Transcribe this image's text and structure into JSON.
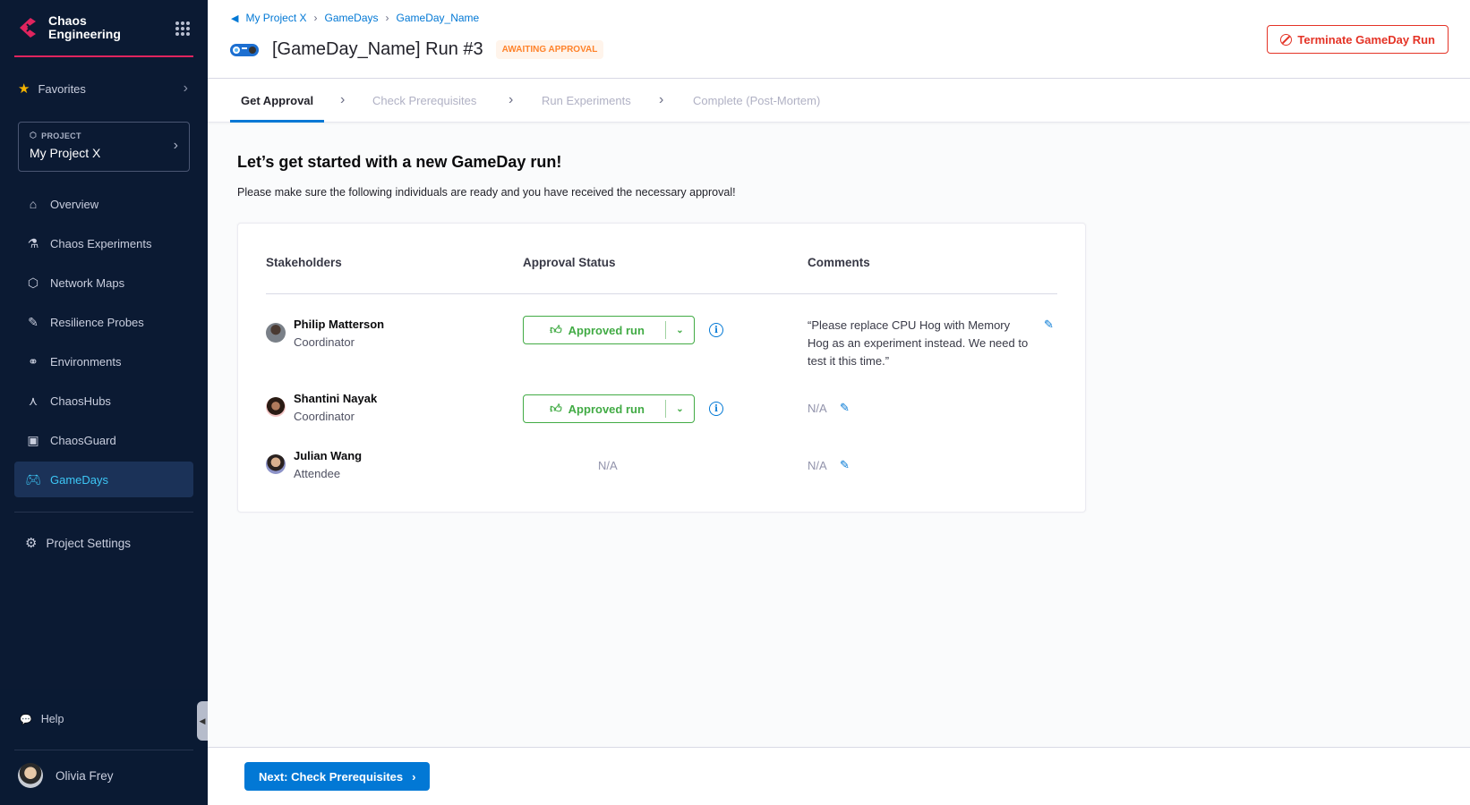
{
  "sidebar": {
    "brand": {
      "line1": "Chaos",
      "line2": "Engineering"
    },
    "favorites": "Favorites",
    "project": {
      "label": "PROJECT",
      "name": "My Project X"
    },
    "items": [
      {
        "label": "Overview",
        "icon": "home-icon"
      },
      {
        "label": "Chaos Experiments",
        "icon": "flask-icon"
      },
      {
        "label": "Network Maps",
        "icon": "network-icon"
      },
      {
        "label": "Resilience Probes",
        "icon": "probe-icon"
      },
      {
        "label": "Environments",
        "icon": "environments-icon"
      },
      {
        "label": "ChaosHubs",
        "icon": "hub-icon"
      },
      {
        "label": "ChaosGuard",
        "icon": "guard-icon"
      },
      {
        "label": "GameDays",
        "icon": "gamepad-icon",
        "active": true
      }
    ],
    "settings": "Project Settings",
    "help": "Help",
    "user": "Olivia Frey"
  },
  "header": {
    "breadcrumbs": [
      "My Project X",
      "GameDays",
      "GameDay_Name"
    ],
    "title": "[GameDay_Name] Run #3",
    "status": "AWAITING APPROVAL",
    "terminate": "Terminate GameDay Run"
  },
  "tabs": [
    "Get Approval",
    "Check Prerequisites",
    "Run Experiments",
    "Complete (Post-Mortem)"
  ],
  "main": {
    "heading": "Let’s get started with a new GameDay run!",
    "subheading": "Please make sure the following individuals are ready and you have received the necessary approval!",
    "columns": [
      "Stakeholders",
      "Approval Status",
      "Comments"
    ],
    "rows": [
      {
        "name": "Philip Matterson",
        "role": "Coordinator",
        "status": "Approved run",
        "comment": "“Please replace CPU Hog with Memory Hog as an experiment instead. We need to test it this time.”"
      },
      {
        "name": "Shantini Nayak",
        "role": "Coordinator",
        "status": "Approved run",
        "comment": "N/A"
      },
      {
        "name": "Julian Wang",
        "role": "Attendee",
        "status": "N/A",
        "comment": "N/A"
      }
    ]
  },
  "footer": {
    "next": "Next: Check Prerequisites"
  },
  "colors": {
    "accent": "#0278d5",
    "approved": "#42ab45",
    "danger": "#e43326",
    "warning": "#ff832b",
    "sidebar": "#0b1a33"
  }
}
